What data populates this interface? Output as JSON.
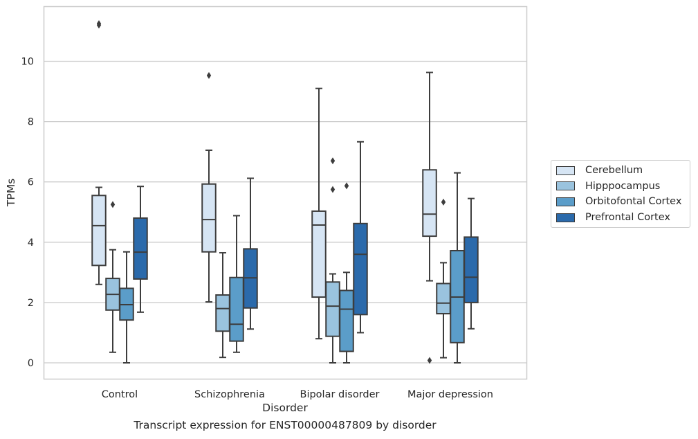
{
  "caption": "Transcript expression for ENST00000487809 by disorder",
  "chart_data": {
    "type": "box",
    "xlabel": "Disorder",
    "ylabel": "TPMs",
    "ylim": [
      -0.55,
      11.8
    ],
    "yticks": [
      0,
      2,
      4,
      6,
      8,
      10
    ],
    "grid": "y",
    "legend_placement": "center-right outside",
    "categories": [
      "Control",
      "Schizophrenia",
      "Bipolar disorder",
      "Major depression"
    ],
    "series": [
      {
        "name": "Cerebellum",
        "color": "#d6e5f4",
        "boxes": [
          {
            "whislo": 2.6,
            "q1": 3.23,
            "med": 4.55,
            "q3": 5.55,
            "whishi": 5.82,
            "fliers": [
              11.2,
              11.25
            ]
          },
          {
            "whislo": 2.02,
            "q1": 3.68,
            "med": 4.75,
            "q3": 5.93,
            "whishi": 7.05,
            "fliers": [
              9.53
            ]
          },
          {
            "whislo": 0.8,
            "q1": 2.18,
            "med": 4.57,
            "q3": 5.03,
            "whishi": 9.1,
            "fliers": []
          },
          {
            "whislo": 2.72,
            "q1": 4.2,
            "med": 4.93,
            "q3": 6.4,
            "whishi": 9.63,
            "fliers": [
              0.08
            ]
          }
        ]
      },
      {
        "name": "Hipppocampus",
        "color": "#9ac3de",
        "boxes": [
          {
            "whislo": 0.35,
            "q1": 1.75,
            "med": 2.27,
            "q3": 2.8,
            "whishi": 3.75,
            "fliers": [
              5.25
            ]
          },
          {
            "whislo": 0.18,
            "q1": 1.05,
            "med": 1.8,
            "q3": 2.25,
            "whishi": 3.65,
            "fliers": []
          },
          {
            "whislo": 0.0,
            "q1": 0.88,
            "med": 1.88,
            "q3": 2.68,
            "whishi": 2.95,
            "fliers": [
              5.75,
              6.7
            ]
          },
          {
            "whislo": 0.17,
            "q1": 1.63,
            "med": 1.98,
            "q3": 2.63,
            "whishi": 3.32,
            "fliers": [
              5.33
            ]
          }
        ]
      },
      {
        "name": "Orbitofontal Cortex",
        "color": "#5b9dc9",
        "boxes": [
          {
            "whislo": 0.0,
            "q1": 1.42,
            "med": 1.93,
            "q3": 2.47,
            "whishi": 3.68,
            "fliers": []
          },
          {
            "whislo": 0.35,
            "q1": 0.72,
            "med": 1.28,
            "q3": 2.83,
            "whishi": 4.88,
            "fliers": []
          },
          {
            "whislo": 0.0,
            "q1": 0.38,
            "med": 1.78,
            "q3": 2.4,
            "whishi": 3.0,
            "fliers": [
              5.87
            ]
          },
          {
            "whislo": 0.0,
            "q1": 0.67,
            "med": 2.18,
            "q3": 3.72,
            "whishi": 6.3,
            "fliers": []
          }
        ]
      },
      {
        "name": "Prefrontal Cortex",
        "color": "#2b6aab",
        "boxes": [
          {
            "whislo": 1.68,
            "q1": 2.78,
            "med": 3.67,
            "q3": 4.8,
            "whishi": 5.85,
            "fliers": []
          },
          {
            "whislo": 1.12,
            "q1": 1.82,
            "med": 2.82,
            "q3": 3.78,
            "whishi": 6.12,
            "fliers": []
          },
          {
            "whislo": 1.0,
            "q1": 1.6,
            "med": 3.6,
            "q3": 4.62,
            "whishi": 7.33,
            "fliers": []
          },
          {
            "whislo": 1.13,
            "q1": 2.0,
            "med": 2.84,
            "q3": 4.17,
            "whishi": 5.45,
            "fliers": []
          }
        ]
      }
    ]
  }
}
